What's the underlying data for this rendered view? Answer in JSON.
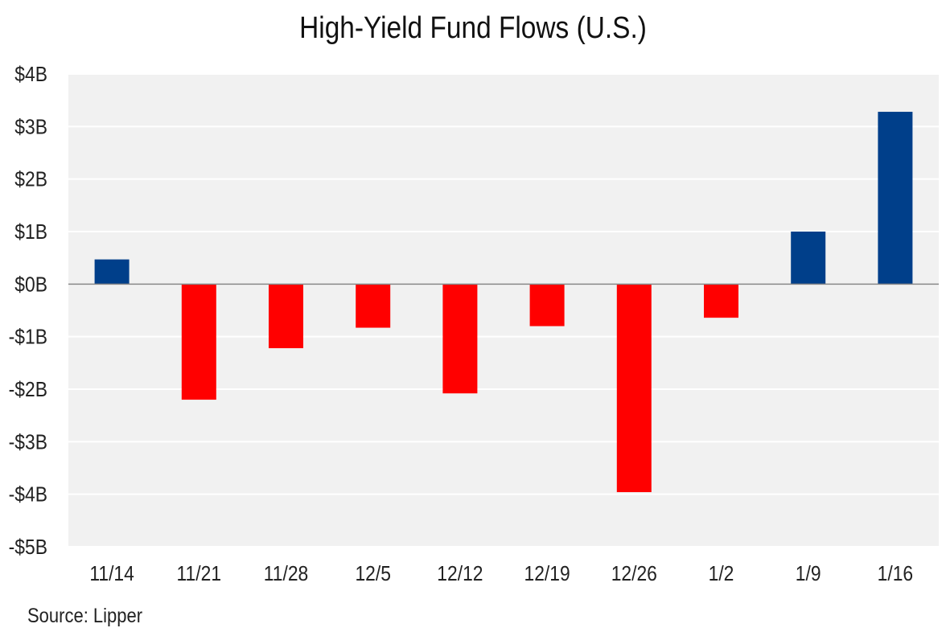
{
  "chart_data": {
    "type": "bar",
    "title": "High-Yield Fund Flows (U.S.)",
    "categories": [
      "11/14",
      "11/21",
      "11/28",
      "12/5",
      "12/12",
      "12/19",
      "12/26",
      "1/2",
      "1/9",
      "1/16"
    ],
    "values": [
      0.47,
      -2.2,
      -1.22,
      -0.83,
      -2.08,
      -0.8,
      -3.96,
      -0.64,
      1.0,
      3.28
    ],
    "value_unit": "$B",
    "ylim": [
      -5,
      4
    ],
    "yticks": [
      4,
      3,
      2,
      1,
      0,
      -1,
      -2,
      -3,
      -4,
      -5
    ],
    "ytick_labels": [
      "$4B",
      "$3B",
      "$2B",
      "$1B",
      "$0B",
      "-$1B",
      "-$2B",
      "-$3B",
      "-$4B",
      "-$5B"
    ],
    "xlabel": "",
    "ylabel": "",
    "grid": true,
    "legend": "none",
    "colors": {
      "positive": "#003f8a",
      "negative": "#ff0000",
      "plot_background": "#f1f1f1",
      "zero_line": "#888888"
    }
  },
  "footer": {
    "source": "Source: Lipper"
  }
}
